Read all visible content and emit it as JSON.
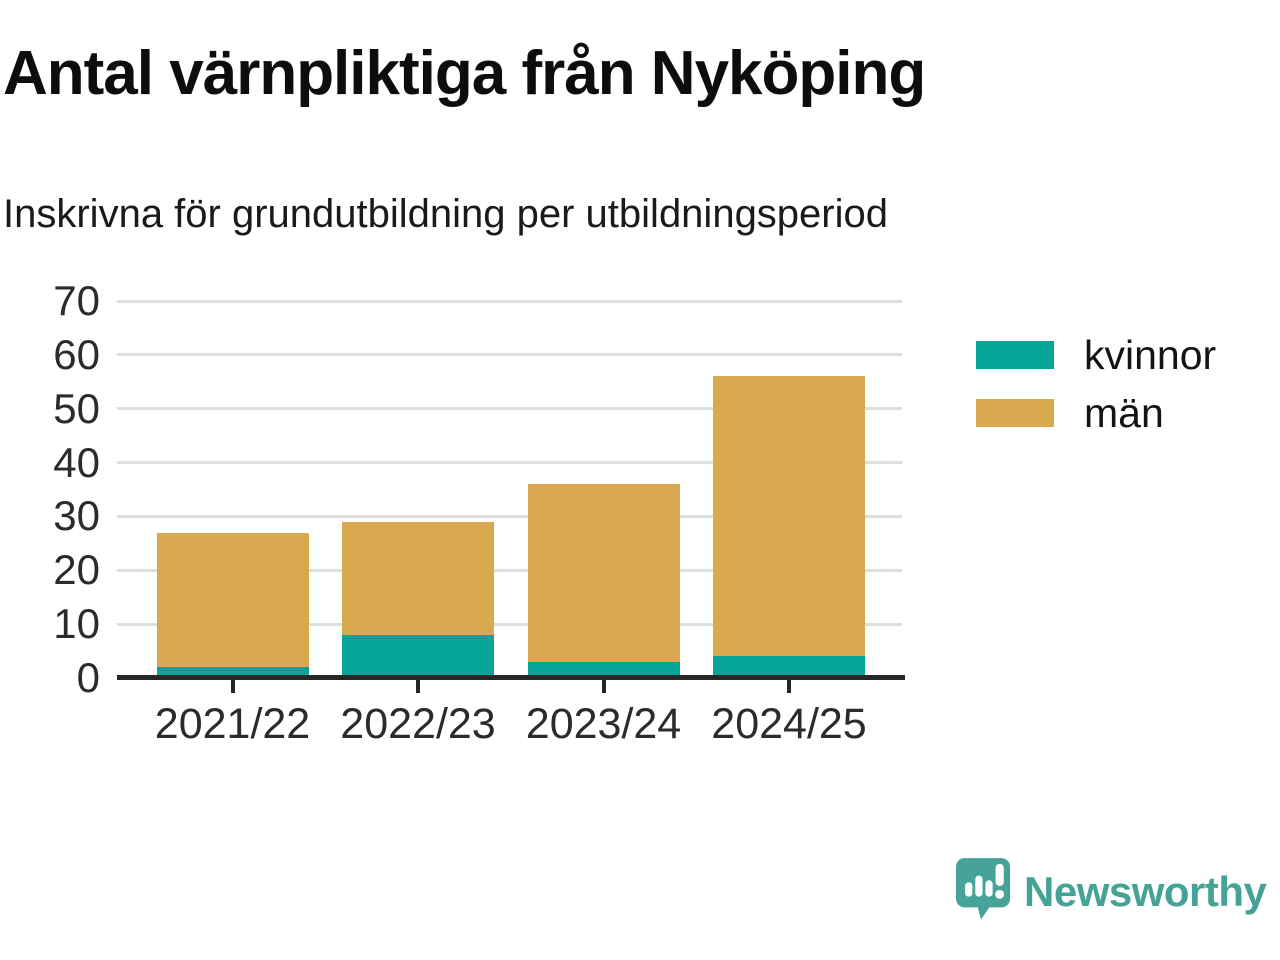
{
  "header": {
    "title": "Antal värnpliktiga från Nyköping",
    "subtitle": "Inskrivna för grundutbildning per utbildningsperiod"
  },
  "chart_data": {
    "type": "bar",
    "stacked": true,
    "title": "Antal värnpliktiga från Nyköping",
    "subtitle": "Inskrivna för grundutbildning per utbildningsperiod",
    "categories": [
      "2021/22",
      "2022/23",
      "2023/24",
      "2024/25"
    ],
    "series": [
      {
        "name": "kvinnor",
        "color": "#07a499",
        "values": [
          2,
          8,
          3,
          4
        ]
      },
      {
        "name": "män",
        "color": "#d9a94f",
        "values": [
          25,
          21,
          33,
          52
        ]
      }
    ],
    "xlabel": "",
    "ylabel": "",
    "ylim": [
      0,
      70
    ],
    "yticks": [
      0,
      10,
      20,
      30,
      40,
      50,
      60,
      70
    ],
    "grid": true,
    "legend_position": "right"
  },
  "footer": {
    "brand": "Newsworthy",
    "logo_icon": "newsworthy-speech-bubble-chart-icon",
    "brand_color": "#45a296"
  }
}
